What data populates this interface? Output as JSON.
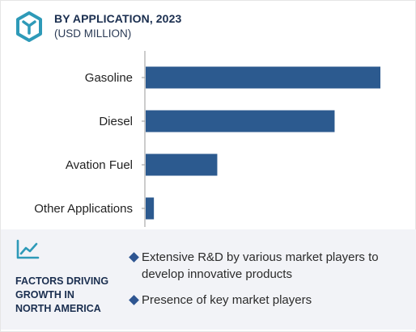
{
  "header": {
    "title": "BY APPLICATION, 2023",
    "subtitle": "(USD MILLION)",
    "logo_icon": "hexagon-logo-icon"
  },
  "colors": {
    "bar": "#2c5a8f",
    "accent": "#2e9ab8",
    "heading": "#1a2e4f"
  },
  "chart_data": {
    "type": "bar",
    "orientation": "horizontal",
    "categories": [
      "Gasoline",
      "Diesel",
      "Avation Fuel",
      "Other Applications"
    ],
    "values": [
      100,
      80.5,
      30.5,
      3.5
    ],
    "xlim": [
      0,
      100
    ],
    "grid": false,
    "value_labels_shown": false
  },
  "footer": {
    "icon": "trend-chart-icon",
    "heading_lines": [
      "FACTORS DRIVING",
      "GROWTH IN",
      "NORTH AMERICA"
    ],
    "bullets": [
      "Extensive R&D by various market players to develop innovative products",
      "Presence of key market players"
    ]
  }
}
